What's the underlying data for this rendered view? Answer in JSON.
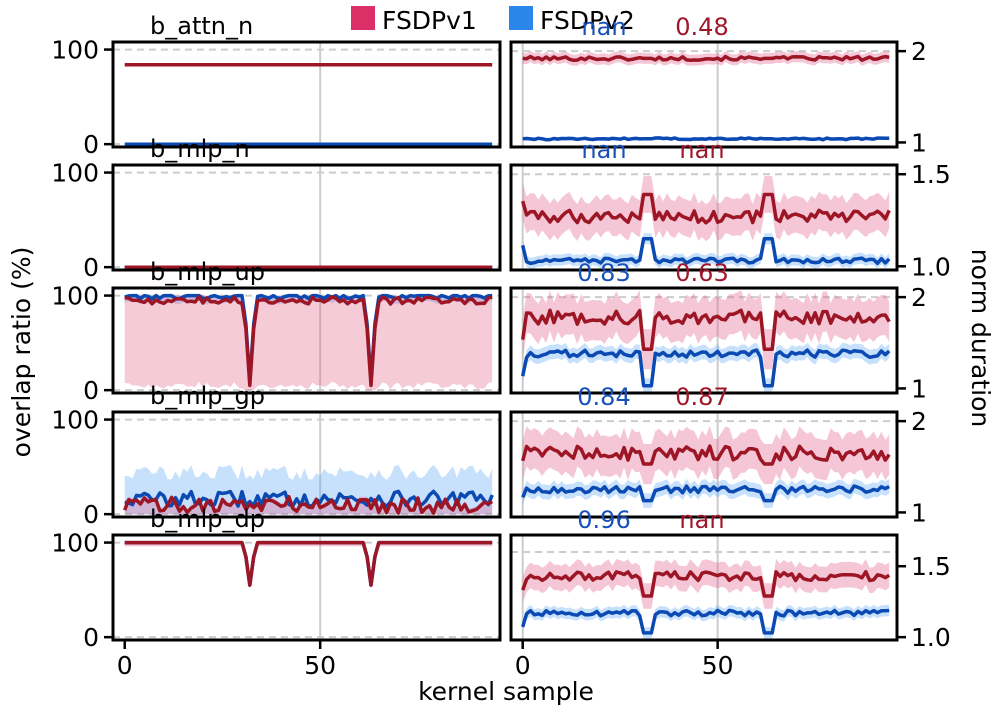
{
  "chart_data": {
    "type": "line",
    "legend": {
      "position": "top-center",
      "entries": [
        {
          "label": "FSDPv1",
          "color": "#dc2e67"
        },
        {
          "label": "FSDPv2",
          "color": "#2a86e8"
        }
      ]
    },
    "colors": {
      "v1_line": "#9c1625",
      "v1_band": "#e35d86",
      "v2_line": "#0b4ab2",
      "v2_band": "#5ea8f5",
      "v1_text": "#a0172a",
      "v2_text": "#1650b8",
      "grid": "#cccccc"
    },
    "xlabel": "kernel sample",
    "ylabel_left": "overlap ratio (%)",
    "ylabel_right": "norm duration",
    "x_domain": [
      -3,
      96
    ],
    "x_ticks": [
      0,
      50
    ],
    "overlap_ylim": [
      -3,
      108
    ],
    "overlap_ticks": [
      0,
      100
    ],
    "dips": [
      32,
      63
    ],
    "rows": [
      {
        "name": "b_attn_n",
        "corr_v2": "nan",
        "corr_v1": "0.48",
        "overlap": {
          "v1_mean": 84,
          "v1_band": 0,
          "v2_mean": 0,
          "v2_band": 0,
          "dip_depth": 0,
          "noise": 0
        },
        "duration": {
          "ylim": [
            0.95,
            2.1
          ],
          "ticks": [
            1,
            2
          ],
          "dashed": [
            2
          ],
          "v1_mean": 1.92,
          "v1_band": 0.06,
          "v2_mean": 1.04,
          "v2_band": 0.02,
          "spike": 0
        }
      },
      {
        "name": "b_mlp_n",
        "corr_v2": "nan",
        "corr_v1": "nan",
        "overlap": {
          "v1_mean": 0,
          "v1_band": 0,
          "v2_mean": 0,
          "v2_band": 0,
          "dip_depth": 0,
          "noise": 0
        },
        "duration": {
          "ylim": [
            0.98,
            1.55
          ],
          "ticks": [
            1.0,
            1.5
          ],
          "dashed": [
            1.5
          ],
          "v1_mean": 1.27,
          "v1_band": 0.1,
          "v2_mean": 1.03,
          "v2_band": 0.03,
          "spike": 0.12
        }
      },
      {
        "name": "b_mlp_up",
        "corr_v2": "0.83",
        "corr_v1": "0.63",
        "overlap": {
          "v1_mean": 95,
          "v1_band": 90,
          "v2_mean": 100,
          "v2_band": 6,
          "dip_depth": 90,
          "noise": 4
        },
        "duration": {
          "ylim": [
            0.95,
            2.1
          ],
          "ticks": [
            1,
            2
          ],
          "dashed": [
            2
          ],
          "v1_mean": 1.78,
          "v1_band": 0.22,
          "v2_mean": 1.38,
          "v2_band": 0.08,
          "spike": -0.35
        }
      },
      {
        "name": "b_mlp_gp",
        "corr_v2": "0.84",
        "corr_v1": "0.87",
        "overlap": {
          "v1_mean": 10,
          "v1_band": 22,
          "v2_mean": 16,
          "v2_band": 28,
          "dip_depth": 0,
          "noise": 9
        },
        "duration": {
          "ylim": [
            0.95,
            2.1
          ],
          "ticks": [
            1,
            2
          ],
          "dashed": [
            2
          ],
          "v1_mean": 1.65,
          "v1_band": 0.22,
          "v2_mean": 1.25,
          "v2_band": 0.08,
          "spike": -0.12
        }
      },
      {
        "name": "b_mlp_dp",
        "corr_v2": "0.96",
        "corr_v1": "nan",
        "overlap": {
          "v1_mean": 100,
          "v1_band": 4,
          "v2_mean": 100,
          "v2_band": 2,
          "dip_depth": 45,
          "noise": 0
        },
        "duration": {
          "ylim": [
            0.98,
            1.72
          ],
          "ticks": [
            1.0,
            1.5
          ],
          "dashed": [
            1.6
          ],
          "v1_mean": 1.43,
          "v1_band": 0.09,
          "v2_mean": 1.17,
          "v2_band": 0.04,
          "spike": -0.14
        }
      }
    ]
  }
}
